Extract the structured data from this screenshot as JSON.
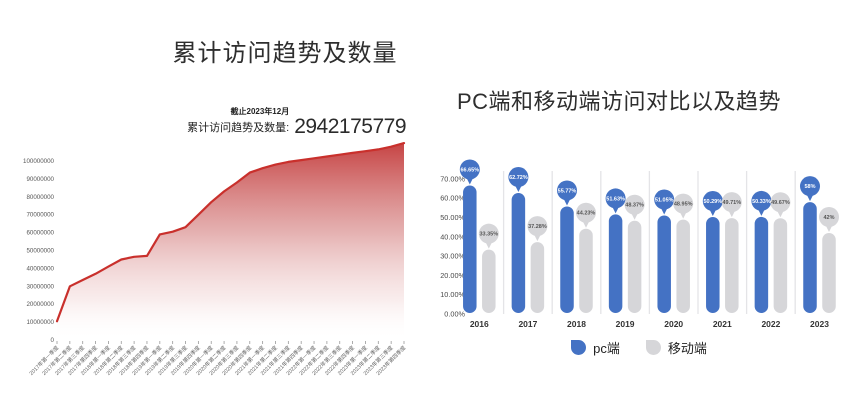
{
  "chart_data": [
    {
      "type": "area",
      "title": "累计访问趋势及数量",
      "subtitle_asof": "截止2023年12月",
      "total_label": "累计访问趋势及数量:",
      "total_value": "2942175779",
      "x": [
        "2017年第一季度",
        "2017年第二季度",
        "2017年第三季度",
        "2017年第四季度",
        "2018年第一季度",
        "2018年第二季度",
        "2018年第三季度",
        "2018年第四季度",
        "2019年第一季度",
        "2019年第二季度",
        "2019年第三季度",
        "2019年第四季度",
        "2020年第一季度",
        "2020年第二季度",
        "2020年第三季度",
        "2020年第四季度",
        "2021年第一季度",
        "2021年第二季度",
        "2021年第三季度",
        "2021年第四季度",
        "2022年第一季度",
        "2022年第二季度",
        "2022年第三季度",
        "2022年第四季度",
        "2023年第一季度",
        "2023年第二季度",
        "2023年第三季度",
        "2023年第四季度"
      ],
      "values": [
        10500000,
        30000000,
        33500000,
        37000000,
        41000000,
        45000000,
        46500000,
        47000000,
        59000000,
        60500000,
        63000000,
        70000000,
        77000000,
        83000000,
        88000000,
        93500000,
        96000000,
        98000000,
        99500000,
        100500000,
        101500000,
        102500000,
        103500000,
        104500000,
        105500000,
        106500000,
        108000000,
        110000000
      ],
      "yticks": [
        0,
        10000000,
        20000000,
        30000000,
        40000000,
        50000000,
        60000000,
        70000000,
        80000000,
        90000000,
        100000000
      ],
      "ylim": [
        0,
        100000000
      ],
      "grid": false,
      "line_color": "#c9302c",
      "fill_top_color": "#c43c3c"
    },
    {
      "type": "bar",
      "title": "PC端和移动端访问对比以及趋势",
      "categories": [
        "2016",
        "2017",
        "2018",
        "2019",
        "2020",
        "2021",
        "2022",
        "2023"
      ],
      "series": [
        {
          "name": "pc端",
          "color": "#4472c4",
          "label_text_color": "#ffffff",
          "values": [
            66.65,
            62.72,
            55.77,
            51.63,
            51.05,
            50.29,
            50.33,
            58
          ],
          "labels": [
            "66.65%",
            "62.72%",
            "55.77%",
            "51.63%",
            "51.05%",
            "50.29%",
            "50.33%",
            "58%"
          ]
        },
        {
          "name": "移动端",
          "color": "#d6d6d9",
          "label_text_color": "#555555",
          "values": [
            33.35,
            37.28,
            44.23,
            48.37,
            48.95,
            49.71,
            49.67,
            42
          ],
          "labels": [
            "33.35%",
            "37.28%",
            "44.23%",
            "48.37%",
            "48.95%",
            "49.71%",
            "49.67%",
            "42%"
          ]
        }
      ],
      "yticks": [
        "0.00%",
        "10.00%",
        "20.00%",
        "30.00%",
        "40.00%",
        "50.00%",
        "60.00%",
        "70.00%"
      ],
      "ylim": [
        0,
        70
      ],
      "grid": false,
      "legend_position": "bottom"
    }
  ]
}
